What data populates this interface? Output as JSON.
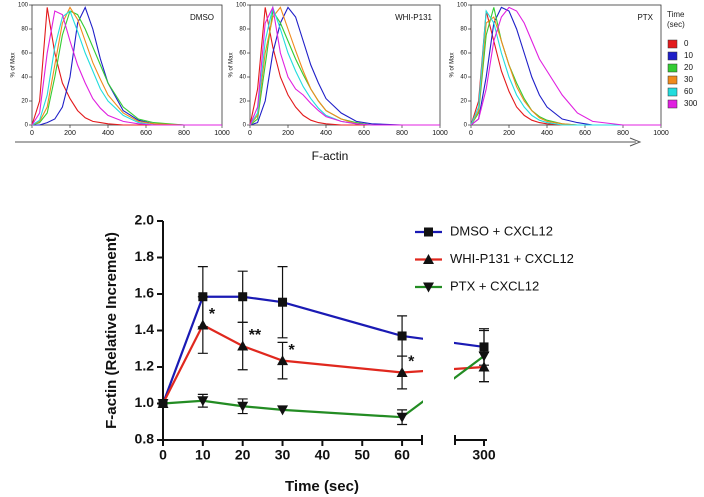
{
  "chart_data": [
    {
      "type": "histogram",
      "title": "DMSO",
      "ylabel": "% of Max",
      "x": [
        0,
        40,
        80,
        120,
        160,
        200,
        240,
        280,
        320,
        360,
        400,
        480,
        560,
        640,
        800,
        1000
      ],
      "xlim": [
        0,
        1000
      ],
      "xticks": [
        0,
        200,
        400,
        600,
        800,
        1000
      ],
      "ylim": [
        0,
        100
      ],
      "yticks": [
        0,
        20,
        40,
        60,
        80,
        100
      ],
      "series": [
        {
          "color": "#e31a1c",
          "values": [
            0,
            20,
            98,
            60,
            35,
            22,
            12,
            6,
            3,
            2,
            1,
            0,
            0,
            0,
            0,
            0
          ]
        },
        {
          "color": "#1f1fc8",
          "values": [
            0,
            0,
            2,
            5,
            15,
            40,
            85,
            98,
            80,
            55,
            35,
            12,
            4,
            1,
            0,
            0
          ]
        },
        {
          "color": "#33cc33",
          "values": [
            0,
            2,
            10,
            40,
            75,
            95,
            92,
            80,
            65,
            50,
            35,
            15,
            5,
            2,
            0,
            0
          ]
        },
        {
          "color": "#f08a1c",
          "values": [
            0,
            3,
            15,
            50,
            85,
            98,
            88,
            70,
            52,
            38,
            25,
            10,
            3,
            1,
            0,
            0
          ]
        },
        {
          "color": "#22dddd",
          "values": [
            0,
            4,
            25,
            65,
            90,
            95,
            78,
            60,
            45,
            30,
            20,
            8,
            2,
            0,
            0,
            0
          ]
        },
        {
          "color": "#e020e0",
          "values": [
            0,
            10,
            60,
            95,
            92,
            70,
            50,
            35,
            22,
            14,
            8,
            3,
            1,
            0,
            0,
            0
          ]
        }
      ]
    },
    {
      "type": "histogram",
      "title": "WHI-P131",
      "ylabel": "% of Max",
      "xlabel": "F-actin",
      "x": [
        0,
        40,
        80,
        120,
        160,
        200,
        240,
        280,
        320,
        360,
        400,
        480,
        560,
        640,
        800,
        1000
      ],
      "xlim": [
        0,
        1000
      ],
      "xticks": [
        0,
        200,
        400,
        600,
        800,
        1000
      ],
      "ylim": [
        0,
        100
      ],
      "yticks": [
        0,
        20,
        40,
        60,
        80,
        100
      ],
      "series": [
        {
          "color": "#e31a1c",
          "values": [
            0,
            30,
            98,
            65,
            40,
            25,
            15,
            8,
            4,
            2,
            1,
            0,
            0,
            0,
            0,
            0
          ]
        },
        {
          "color": "#1f1fc8",
          "values": [
            0,
            2,
            20,
            60,
            85,
            98,
            90,
            70,
            50,
            35,
            22,
            10,
            3,
            1,
            0,
            0
          ]
        },
        {
          "color": "#33cc33",
          "values": [
            0,
            5,
            50,
            95,
            85,
            70,
            55,
            42,
            30,
            20,
            12,
            5,
            2,
            0,
            0,
            0
          ]
        },
        {
          "color": "#f08a1c",
          "values": [
            0,
            8,
            60,
            90,
            98,
            80,
            62,
            45,
            30,
            20,
            12,
            5,
            1,
            0,
            0,
            0
          ]
        },
        {
          "color": "#22dddd",
          "values": [
            0,
            10,
            70,
            98,
            80,
            60,
            45,
            32,
            22,
            14,
            8,
            3,
            1,
            0,
            0,
            0
          ]
        },
        {
          "color": "#e020e0",
          "values": [
            0,
            15,
            85,
            98,
            60,
            40,
            30,
            25,
            18,
            12,
            7,
            3,
            1,
            0,
            0,
            0
          ]
        }
      ]
    },
    {
      "type": "histogram",
      "title": "PTX",
      "ylabel": "% of Max",
      "legend_title": "Time (sec)",
      "x": [
        0,
        40,
        80,
        120,
        160,
        200,
        240,
        280,
        320,
        360,
        400,
        480,
        560,
        640,
        800,
        1000
      ],
      "xlim": [
        0,
        1000
      ],
      "xticks": [
        0,
        200,
        400,
        600,
        800,
        1000
      ],
      "ylim": [
        0,
        100
      ],
      "yticks": [
        0,
        20,
        40,
        60,
        80,
        100
      ],
      "series": [
        {
          "name": "0",
          "color": "#e31a1c",
          "values": [
            0,
            20,
            95,
            70,
            45,
            28,
            15,
            8,
            4,
            2,
            1,
            0,
            0,
            0,
            0,
            0
          ]
        },
        {
          "name": "10",
          "color": "#1f1fc8",
          "values": [
            0,
            5,
            40,
            85,
            98,
            95,
            80,
            60,
            40,
            25,
            15,
            5,
            2,
            0,
            0,
            0
          ]
        },
        {
          "name": "20",
          "color": "#33cc33",
          "values": [
            0,
            10,
            75,
            98,
            70,
            50,
            35,
            22,
            12,
            7,
            4,
            1,
            0,
            0,
            0,
            0
          ]
        },
        {
          "name": "30",
          "color": "#f08a1c",
          "values": [
            0,
            12,
            85,
            90,
            70,
            50,
            32,
            20,
            12,
            6,
            3,
            1,
            0,
            0,
            0,
            0
          ]
        },
        {
          "name": "60",
          "color": "#22dddd",
          "values": [
            0,
            15,
            95,
            85,
            60,
            40,
            25,
            15,
            8,
            4,
            2,
            0,
            0,
            0,
            0,
            0
          ]
        },
        {
          "name": "300",
          "color": "#e020e0",
          "values": [
            0,
            5,
            30,
            70,
            90,
            98,
            95,
            85,
            70,
            55,
            45,
            25,
            10,
            3,
            0,
            0
          ]
        }
      ]
    },
    {
      "type": "line",
      "xlabel": "Time (sec)",
      "ylabel": "F-actin (Relative Increment)",
      "x": [
        0,
        10,
        20,
        30,
        60,
        300
      ],
      "xlim": [
        0,
        300
      ],
      "xbreak": [
        65,
        296
      ],
      "xticks": [
        0,
        10,
        20,
        30,
        40,
        50,
        60,
        300
      ],
      "ylim": [
        0.8,
        2.0
      ],
      "yticks": [
        {
          "value": 0.8,
          "label": "0.8"
        },
        {
          "value": 1.0,
          "label": "1.0"
        },
        {
          "value": 1.2,
          "label": "1.2"
        },
        {
          "value": 1.4,
          "label": "1.4"
        },
        {
          "value": 1.6,
          "label": "1.6"
        },
        {
          "value": 1.8,
          "label": "1.8"
        },
        {
          "value": 2.0,
          "label": "2.0"
        }
      ],
      "series": [
        {
          "name": "DMSO + CXCL12",
          "color": "#1a1ab4",
          "marker": "square",
          "values": [
            1.0,
            1.585,
            1.585,
            1.555,
            1.37,
            1.31
          ],
          "errors": [
            0,
            0.165,
            0.14,
            0.195,
            0.11,
            0.1
          ]
        },
        {
          "name": "WHI-P131 + CXCL12",
          "color": "#e0281e",
          "marker": "triangle-up",
          "values": [
            1.0,
            1.43,
            1.315,
            1.235,
            1.17,
            1.2
          ],
          "errors": [
            0,
            0.155,
            0.13,
            0.1,
            0.09,
            0.08
          ]
        },
        {
          "name": "PTX + CXCL12",
          "color": "#238c23",
          "marker": "triangle-down",
          "values": [
            1.0,
            1.015,
            0.985,
            0.965,
            0.925,
            1.26
          ],
          "errors": [
            0,
            0.035,
            0.04,
            0,
            0.04,
            0.14
          ]
        }
      ],
      "annotations": [
        {
          "text": "*",
          "x": 10
        },
        {
          "text": "**",
          "x": 20
        },
        {
          "text": "*",
          "x": 30
        },
        {
          "text": "*",
          "x": 60
        }
      ]
    }
  ]
}
